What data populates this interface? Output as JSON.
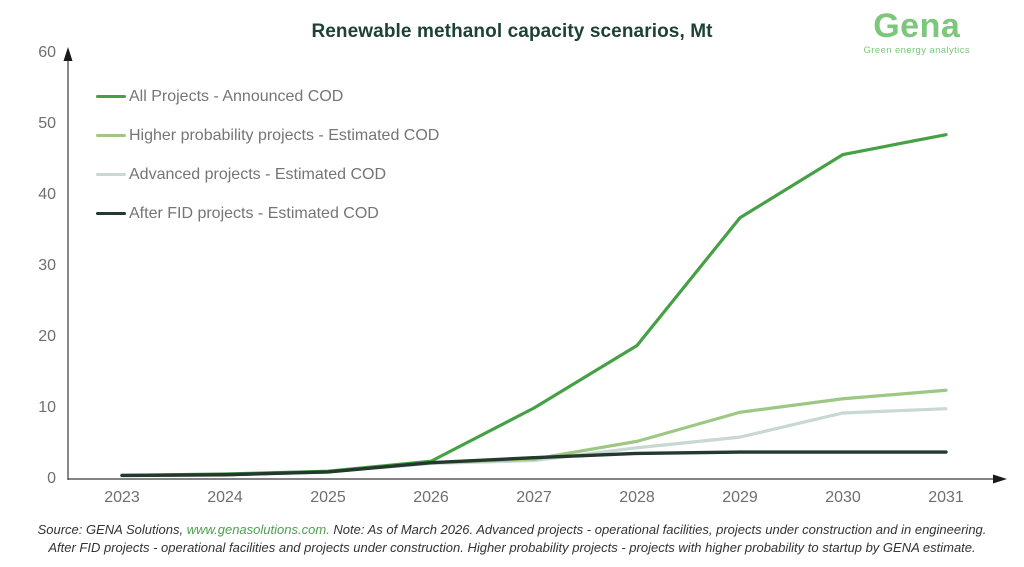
{
  "logo": {
    "name": "Gena",
    "tagline": "Green energy analytics",
    "color": "#7cc77b"
  },
  "footer": {
    "line1_prefix": "Source: GENA Solutions, ",
    "line1_link": "www.genasolutions.com.",
    "line1_suffix": " Note: As of March 2026. Advanced projects - operational facilities, projects under construction and in engineering.",
    "line2": "After FID projects - operational facilities and projects under construction. Higher probability projects - projects with higher probability to startup by GENA estimate."
  },
  "chart_data": {
    "type": "line",
    "title": "Renewable methanol capacity scenarios, Mt",
    "unit": "Mt",
    "x": [
      2023,
      2024,
      2025,
      2026,
      2027,
      2028,
      2029,
      2030,
      2031
    ],
    "xlabel": "",
    "ylabel": "",
    "ylim": [
      0,
      60
    ],
    "yticks": [
      0,
      10,
      20,
      30,
      40,
      50,
      60
    ],
    "grid": false,
    "legend_position": "top-left",
    "axis_color": "#3a3a3a",
    "series": [
      {
        "name": "All Projects - Announced COD",
        "color": "#46a046",
        "width": 3.2,
        "values": [
          0.5,
          0.7,
          1.1,
          2.5,
          10.0,
          18.8,
          36.8,
          45.7,
          48.5
        ]
      },
      {
        "name": "Higher probability projects - Estimated COD",
        "color": "#9cc884",
        "width": 3.2,
        "values": [
          0.5,
          0.6,
          1.0,
          2.3,
          2.8,
          5.3,
          9.4,
          11.3,
          12.5
        ]
      },
      {
        "name": "Advanced projects - Estimated COD",
        "color": "#c9d8d2",
        "width": 3.2,
        "values": [
          0.5,
          0.6,
          1.0,
          2.2,
          2.6,
          4.4,
          5.9,
          9.3,
          9.9
        ]
      },
      {
        "name": "After FID projects - Estimated COD",
        "color": "#23392d",
        "width": 3.4,
        "values": [
          0.5,
          0.6,
          1.0,
          2.3,
          3.0,
          3.6,
          3.8,
          3.8,
          3.8
        ]
      }
    ]
  }
}
